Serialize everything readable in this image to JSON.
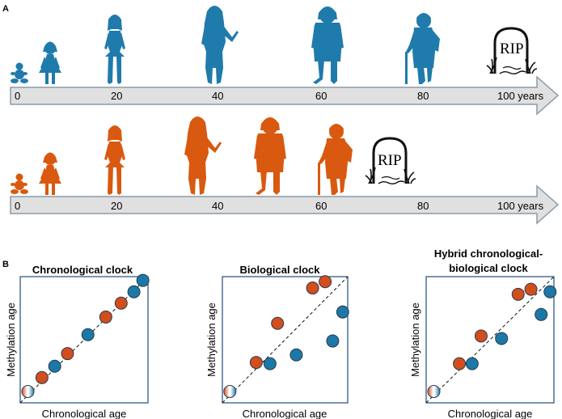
{
  "panels": {
    "a": "A",
    "b": "B"
  },
  "colors": {
    "blue": "#1f7bab",
    "orange": "#d8590f",
    "arrow_fill": "#e0e0e0",
    "arrow_stroke": "#8a9ba8",
    "plot_border": "#1f4e79",
    "dot_blue": "#1c78a8",
    "dot_orange": "#d24e1d"
  },
  "timeline_top": {
    "ticks": [
      "0",
      "20",
      "40",
      "60",
      "80",
      "100 years"
    ],
    "tombstone_text": "RIP",
    "death_age_years": 100
  },
  "timeline_bottom": {
    "ticks": [
      "0",
      "20",
      "40",
      "60",
      "80",
      "100 years"
    ],
    "tombstone_text": "RIP",
    "death_age_years": 70
  },
  "plots": [
    {
      "title_lines": [
        "Chronological clock"
      ],
      "xlabel": "Chronological age",
      "ylabel": "Methylation age",
      "points": [
        {
          "x": 0.06,
          "y": 0.09,
          "c": "split"
        },
        {
          "x": 0.17,
          "y": 0.2,
          "c": "orange"
        },
        {
          "x": 0.27,
          "y": 0.29,
          "c": "blue"
        },
        {
          "x": 0.37,
          "y": 0.39,
          "c": "orange"
        },
        {
          "x": 0.53,
          "y": 0.54,
          "c": "blue"
        },
        {
          "x": 0.67,
          "y": 0.68,
          "c": "orange"
        },
        {
          "x": 0.79,
          "y": 0.79,
          "c": "orange"
        },
        {
          "x": 0.89,
          "y": 0.88,
          "c": "blue"
        },
        {
          "x": 0.96,
          "y": 0.97,
          "c": "blue"
        }
      ]
    },
    {
      "title_lines": [
        "Biological clock"
      ],
      "xlabel": "Chronological age",
      "ylabel": "Methylation age",
      "points": [
        {
          "x": 0.06,
          "y": 0.09,
          "c": "split"
        },
        {
          "x": 0.27,
          "y": 0.32,
          "c": "orange"
        },
        {
          "x": 0.38,
          "y": 0.31,
          "c": "blue"
        },
        {
          "x": 0.44,
          "y": 0.63,
          "c": "orange"
        },
        {
          "x": 0.59,
          "y": 0.38,
          "c": "blue"
        },
        {
          "x": 0.72,
          "y": 0.91,
          "c": "orange"
        },
        {
          "x": 0.82,
          "y": 0.96,
          "c": "orange"
        },
        {
          "x": 0.88,
          "y": 0.49,
          "c": "blue"
        },
        {
          "x": 0.96,
          "y": 0.72,
          "c": "blue"
        }
      ]
    },
    {
      "title_lines": [
        "Hybrid chronological-",
        "biological clock"
      ],
      "xlabel": "Chronological age",
      "ylabel": "Methylation age",
      "points": [
        {
          "x": 0.06,
          "y": 0.09,
          "c": "split"
        },
        {
          "x": 0.26,
          "y": 0.31,
          "c": "orange"
        },
        {
          "x": 0.36,
          "y": 0.31,
          "c": "blue"
        },
        {
          "x": 0.43,
          "y": 0.53,
          "c": "orange"
        },
        {
          "x": 0.59,
          "y": 0.51,
          "c": "blue"
        },
        {
          "x": 0.72,
          "y": 0.86,
          "c": "orange"
        },
        {
          "x": 0.82,
          "y": 0.9,
          "c": "orange"
        },
        {
          "x": 0.9,
          "y": 0.7,
          "c": "blue"
        },
        {
          "x": 0.97,
          "y": 0.88,
          "c": "blue"
        }
      ]
    }
  ]
}
